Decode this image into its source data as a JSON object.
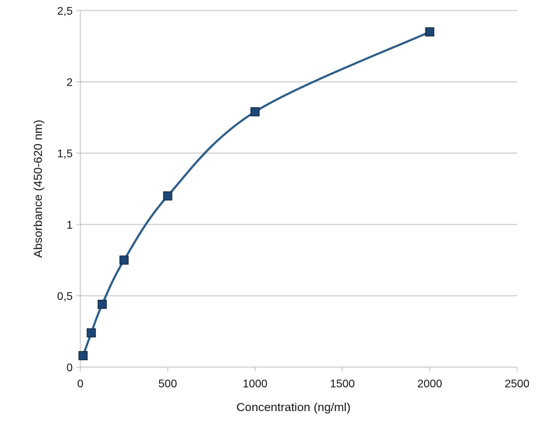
{
  "chart_data": {
    "type": "line",
    "title": "",
    "xlabel": "Concentration (ng/ml)",
    "ylabel": "Absorbance (450-620 nm)",
    "xlim": [
      0,
      2500
    ],
    "ylim": [
      0,
      2.5
    ],
    "xticks": [
      0,
      500,
      1000,
      1500,
      2000,
      2500
    ],
    "xtick_labels": [
      "0",
      "500",
      "1000",
      "1500",
      "2000",
      "2500"
    ],
    "yticks": [
      0,
      0.5,
      1,
      1.5,
      2,
      2.5
    ],
    "ytick_labels": [
      "0",
      "0,5",
      "1",
      "1,5",
      "2",
      "2,5"
    ],
    "grid": "horizontal",
    "legend": "none",
    "smooth": true,
    "marker": "square",
    "colors": {
      "line": "#2b5c86",
      "marker": "#1c4675",
      "marker_edge": "#0d1f33",
      "grid": "#b3b3b3"
    },
    "series": [
      {
        "x": [
          15.6,
          62.5,
          125,
          250,
          500,
          1000,
          2000
        ],
        "y": [
          0.08,
          0.24,
          0.44,
          0.75,
          1.2,
          1.79,
          2.35
        ]
      }
    ]
  }
}
